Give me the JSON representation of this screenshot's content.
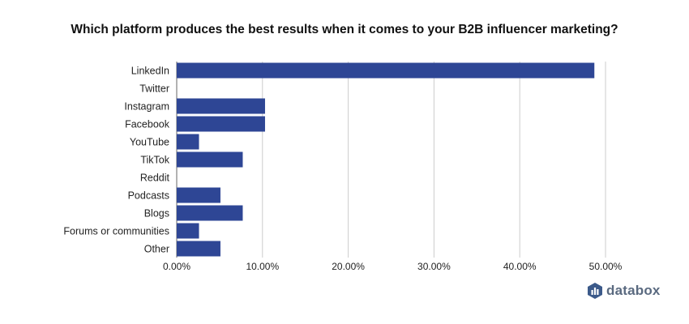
{
  "chart_data": {
    "type": "bar",
    "orientation": "horizontal",
    "title": "Which platform produces the best results when it comes to your B2B influencer marketing?",
    "categories": [
      "LinkedIn",
      "Twitter",
      "Instagram",
      "Facebook",
      "YouTube",
      "TikTok",
      "Reddit",
      "Podcasts",
      "Blogs",
      "Forums or communities",
      "Other"
    ],
    "values": [
      48.7,
      0,
      10.3,
      10.3,
      2.6,
      7.7,
      0,
      5.1,
      7.7,
      2.6,
      5.1
    ],
    "xlim": [
      0,
      50
    ],
    "xticks": [
      "0.00%",
      "10.00%",
      "20.00%",
      "30.00%",
      "40.00%",
      "50.00%"
    ],
    "xtick_values": [
      0,
      10,
      20,
      30,
      40,
      50
    ],
    "grid": "vertical",
    "bar_color": "#2e4695"
  },
  "brand": {
    "name": "databox",
    "logo_color": "#3c5a8a"
  }
}
